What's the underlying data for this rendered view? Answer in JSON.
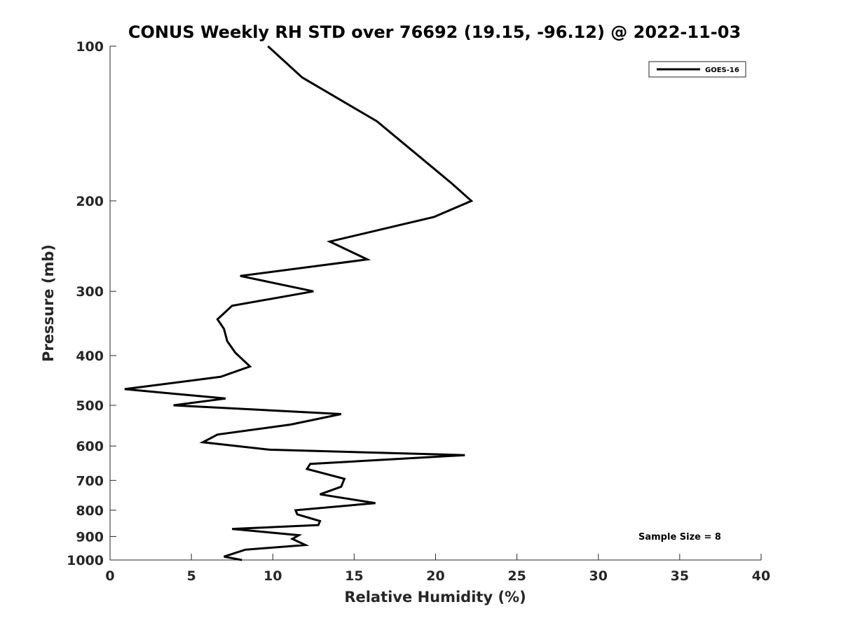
{
  "chart_data": {
    "type": "line",
    "title": "CONUS Weekly RH STD over 76692 (19.15, -96.12) @ 2022-11-03",
    "xlabel": "Relative Humidity (%)",
    "ylabel": "Pressure (mb)",
    "xlim": [
      0,
      40
    ],
    "ylim": [
      100,
      1000
    ],
    "yscale": "log",
    "y_reversed": true,
    "grid": false,
    "x_ticks": [
      "0",
      "5",
      "10",
      "15",
      "20",
      "25",
      "30",
      "35",
      "40"
    ],
    "y_ticks": [
      "100",
      "200",
      "300",
      "400",
      "500",
      "600",
      "700",
      "800",
      "900",
      "1000"
    ],
    "legend_placement": "top-right",
    "series": [
      {
        "name": "GOES-16",
        "color": "#000000",
        "x": [
          9.7,
          11.8,
          16.4,
          18.6,
          21.0,
          22.2,
          19.9,
          13.5,
          15.8,
          8.0,
          12.5,
          7.5,
          6.6,
          7.0,
          7.2,
          7.7,
          8.6,
          6.8,
          0.9,
          7.1,
          3.9,
          14.2,
          11.1,
          6.6,
          5.7,
          9.8,
          21.8,
          12.3,
          12.1,
          14.4,
          14.2,
          12.9,
          16.3,
          11.4,
          11.5,
          12.9,
          12.8,
          7.5,
          11.6,
          11.2,
          12.0,
          8.3,
          7.0,
          8.1
        ],
        "y": [
          100,
          115,
          140,
          160,
          185,
          200,
          215,
          240,
          260,
          280,
          300,
          320,
          340,
          355,
          375,
          395,
          420,
          440,
          465,
          485,
          500,
          520,
          545,
          570,
          590,
          610,
          625,
          650,
          665,
          695,
          720,
          745,
          775,
          800,
          815,
          840,
          855,
          870,
          895,
          910,
          935,
          955,
          985,
          1000
        ]
      }
    ],
    "annotations": [
      "Sample Size = 8"
    ]
  }
}
